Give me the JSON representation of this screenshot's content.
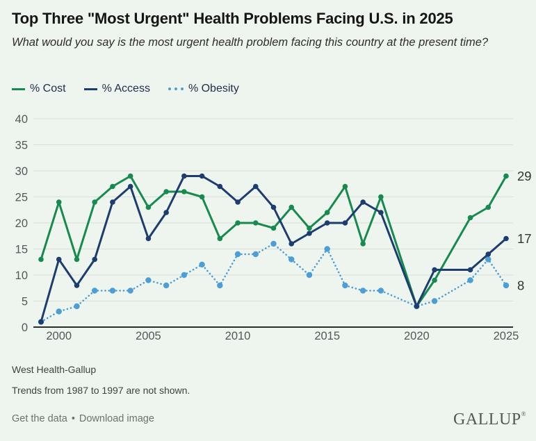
{
  "header": {
    "title": "Top Three \"Most Urgent\" Health Problems Facing U.S. in 2025",
    "subtitle": "What would you say is the most urgent health problem facing this country at the present time?"
  },
  "legend": [
    {
      "label": "% Cost",
      "color": "#178A50",
      "style": "solid"
    },
    {
      "label": "% Access",
      "color": "#1C3D6E",
      "style": "solid"
    },
    {
      "label": "% Obesity",
      "color": "#4C9ED6",
      "style": "dotted"
    }
  ],
  "chart_data": {
    "type": "line",
    "title": "Top Three \"Most Urgent\" Health Problems Facing U.S. in 2025",
    "x": [
      1999,
      2000,
      2001,
      2002,
      2003,
      2004,
      2005,
      2006,
      2007,
      2008,
      2009,
      2010,
      2011,
      2012,
      2013,
      2014,
      2015,
      2016,
      2017,
      2018,
      2020,
      2021,
      2023,
      2024,
      2025
    ],
    "series": [
      {
        "name": "% Cost",
        "color": "#178A50",
        "style": "solid",
        "values": [
          13,
          24,
          13,
          24,
          27,
          29,
          23,
          26,
          26,
          25,
          17,
          20,
          20,
          19,
          23,
          19,
          22,
          27,
          16,
          25,
          4,
          9,
          21,
          23,
          29
        ],
        "end_label": "29"
      },
      {
        "name": "% Access",
        "color": "#1C3D6E",
        "style": "solid",
        "values": [
          1,
          13,
          8,
          13,
          24,
          27,
          17,
          22,
          29,
          29,
          27,
          24,
          27,
          23,
          16,
          18,
          20,
          20,
          24,
          22,
          4,
          11,
          11,
          14,
          17
        ],
        "end_label": "17"
      },
      {
        "name": "% Obesity",
        "color": "#4C9ED6",
        "style": "dotted",
        "values": [
          1,
          3,
          4,
          7,
          7,
          7,
          9,
          8,
          10,
          12,
          8,
          14,
          14,
          16,
          13,
          10,
          15,
          8,
          7,
          7,
          4,
          5,
          9,
          13,
          8
        ],
        "end_label": "8"
      }
    ],
    "ylim": [
      0,
      40
    ],
    "yticks": [
      0,
      5,
      10,
      15,
      20,
      25,
      30,
      35,
      40
    ],
    "xticks": [
      "2000",
      "2005",
      "2010",
      "2015",
      "2020",
      "2025"
    ],
    "xtick_years": [
      2000,
      2005,
      2010,
      2015,
      2020,
      2025
    ],
    "grid": true,
    "legend_position": "top",
    "missing_years": [
      2019,
      2022
    ],
    "draw_order": [
      0,
      2,
      1
    ],
    "colors": {
      "grid": "#d9ded7",
      "axis": "#2d2d2d",
      "tick_label": "#54585a",
      "end_label": "#333333",
      "background": "#eef4ee"
    }
  },
  "footer": {
    "source": "West Health-Gallup",
    "note": "Trends from 1987 to 1997 are not shown.",
    "links": {
      "get_data": "Get the data",
      "separator": "•",
      "download": "Download image"
    },
    "logo": "GALLUP",
    "logo_mark": "®"
  }
}
